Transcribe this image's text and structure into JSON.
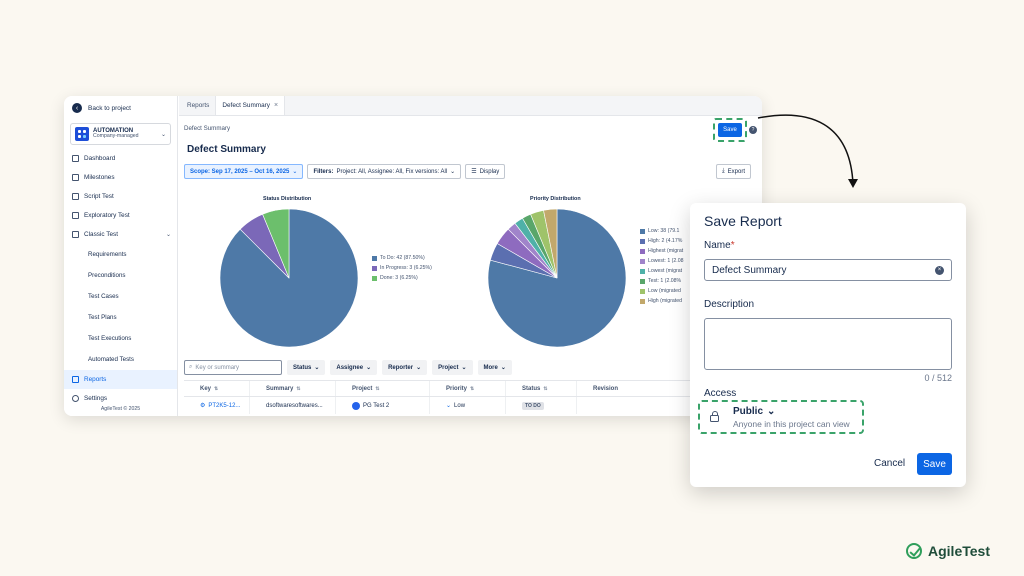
{
  "sidebar": {
    "back_label": "Back to project",
    "project_name": "AUTOMATION",
    "project_type": "Company-managed",
    "items": [
      {
        "label": "Dashboard"
      },
      {
        "label": "Milestones"
      },
      {
        "label": "Script Test"
      },
      {
        "label": "Exploratory Test"
      },
      {
        "label": "Classic Test"
      }
    ],
    "sub_items": [
      {
        "label": "Requirements"
      },
      {
        "label": "Preconditions"
      },
      {
        "label": "Test Cases"
      },
      {
        "label": "Test Plans"
      },
      {
        "label": "Test Executions"
      },
      {
        "label": "Automated Tests"
      }
    ],
    "reports_label": "Reports",
    "settings_label": "Settings",
    "copyright": "AgileTest © 2025"
  },
  "tabs": [
    {
      "label": "Reports"
    },
    {
      "label": "Defect Summary"
    }
  ],
  "breadcrumb": "Defect Summary",
  "page_title": "Defect Summary",
  "save_small_label": "Save",
  "help_label": "?",
  "filters": {
    "scope": "Scope: Sep 17, 2025 – Oct 16, 2025",
    "filters_bold": "Filters:",
    "filters_text": "Project: All, Assignee: All, Fix versions: All",
    "display": "Display",
    "export": "Export"
  },
  "charts": {
    "status_title": "Status Distribution",
    "priority_title": "Priority Distribution"
  },
  "chart_data": [
    {
      "type": "pie",
      "title": "Status Distribution",
      "categories": [
        "To Do: 42 (87.50%)",
        "In Progress: 3 (6.25%)",
        "Done: 3 (6.25%)"
      ],
      "values": [
        42,
        3,
        3
      ],
      "colors": [
        "#4e79a7",
        "#7b68b8",
        "#6cbf6c"
      ],
      "legend": "right"
    },
    {
      "type": "pie",
      "title": "Priority Distribution",
      "categories": [
        "Low: 38 (79.1",
        "High: 2 (4.17%",
        "Highest (migrat",
        "Lowest: 1 (2.08",
        "Lowest (migrat",
        "Test: 1 (2.08%",
        "Low (migrated",
        "High (migrated"
      ],
      "values": [
        38,
        2,
        2,
        1,
        1,
        1,
        1.5,
        1.5
      ],
      "colors": [
        "#4e79a7",
        "#5b6fb0",
        "#8e6bbf",
        "#a084ca",
        "#4fb1a8",
        "#59a66a",
        "#9fc36a",
        "#c2a86b"
      ],
      "legend": "right"
    }
  ],
  "table_controls": {
    "search_placeholder": "Key or summary",
    "dropdowns": [
      "Status",
      "Assignee",
      "Reporter",
      "Project",
      "More"
    ]
  },
  "table": {
    "headers": [
      "Key",
      "Summary",
      "Project",
      "Priority",
      "Status",
      "Revision"
    ],
    "rows": [
      {
        "key": "PT2K5-12...",
        "summary": "dsoftwaresoftwares...",
        "project": "PG Test 2",
        "priority": "Low",
        "status": "TO DO",
        "revision": ""
      }
    ]
  },
  "dialog": {
    "title": "Save Report",
    "name_label": "Name",
    "required_mark": "*",
    "name_value": "Defect Summary",
    "description_label": "Description",
    "description_value": "",
    "counter": "0 / 512",
    "access_label": "Access",
    "access_value": "Public",
    "access_sub": "Anyone in this project can view",
    "cancel": "Cancel",
    "save": "Save"
  },
  "brand": "AgileTest",
  "colors": {
    "primary": "#0c66e4",
    "highlight": "#3aa36a"
  }
}
